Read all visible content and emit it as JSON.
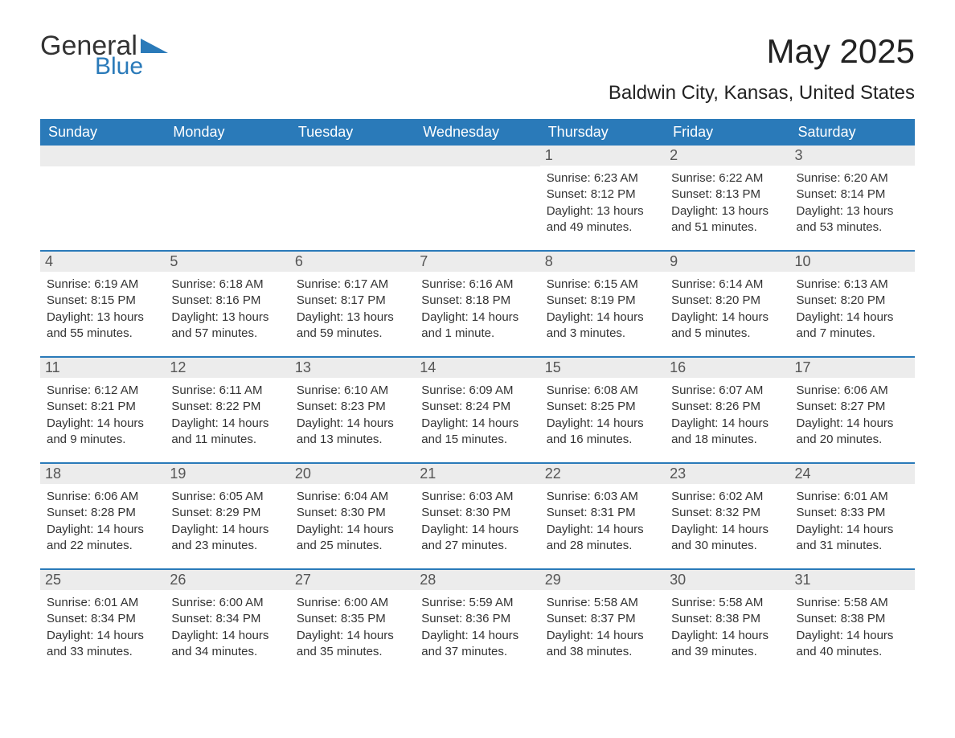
{
  "logo": {
    "text1": "General",
    "text2": "Blue",
    "accent": "#2a7ab9"
  },
  "title": "May 2025",
  "location": "Baldwin City, Kansas, United States",
  "colors": {
    "header_bg": "#2a7ab9",
    "header_text": "#ffffff",
    "daynum_bg": "#ececec",
    "border": "#2a7ab9",
    "body_text": "#333333"
  },
  "dayNames": [
    "Sunday",
    "Monday",
    "Tuesday",
    "Wednesday",
    "Thursday",
    "Friday",
    "Saturday"
  ],
  "startOffset": 4,
  "days": [
    {
      "n": 1,
      "sr": "6:23 AM",
      "ss": "8:12 PM",
      "dl": "13 hours and 49 minutes."
    },
    {
      "n": 2,
      "sr": "6:22 AM",
      "ss": "8:13 PM",
      "dl": "13 hours and 51 minutes."
    },
    {
      "n": 3,
      "sr": "6:20 AM",
      "ss": "8:14 PM",
      "dl": "13 hours and 53 minutes."
    },
    {
      "n": 4,
      "sr": "6:19 AM",
      "ss": "8:15 PM",
      "dl": "13 hours and 55 minutes."
    },
    {
      "n": 5,
      "sr": "6:18 AM",
      "ss": "8:16 PM",
      "dl": "13 hours and 57 minutes."
    },
    {
      "n": 6,
      "sr": "6:17 AM",
      "ss": "8:17 PM",
      "dl": "13 hours and 59 minutes."
    },
    {
      "n": 7,
      "sr": "6:16 AM",
      "ss": "8:18 PM",
      "dl": "14 hours and 1 minute."
    },
    {
      "n": 8,
      "sr": "6:15 AM",
      "ss": "8:19 PM",
      "dl": "14 hours and 3 minutes."
    },
    {
      "n": 9,
      "sr": "6:14 AM",
      "ss": "8:20 PM",
      "dl": "14 hours and 5 minutes."
    },
    {
      "n": 10,
      "sr": "6:13 AM",
      "ss": "8:20 PM",
      "dl": "14 hours and 7 minutes."
    },
    {
      "n": 11,
      "sr": "6:12 AM",
      "ss": "8:21 PM",
      "dl": "14 hours and 9 minutes."
    },
    {
      "n": 12,
      "sr": "6:11 AM",
      "ss": "8:22 PM",
      "dl": "14 hours and 11 minutes."
    },
    {
      "n": 13,
      "sr": "6:10 AM",
      "ss": "8:23 PM",
      "dl": "14 hours and 13 minutes."
    },
    {
      "n": 14,
      "sr": "6:09 AM",
      "ss": "8:24 PM",
      "dl": "14 hours and 15 minutes."
    },
    {
      "n": 15,
      "sr": "6:08 AM",
      "ss": "8:25 PM",
      "dl": "14 hours and 16 minutes."
    },
    {
      "n": 16,
      "sr": "6:07 AM",
      "ss": "8:26 PM",
      "dl": "14 hours and 18 minutes."
    },
    {
      "n": 17,
      "sr": "6:06 AM",
      "ss": "8:27 PM",
      "dl": "14 hours and 20 minutes."
    },
    {
      "n": 18,
      "sr": "6:06 AM",
      "ss": "8:28 PM",
      "dl": "14 hours and 22 minutes."
    },
    {
      "n": 19,
      "sr": "6:05 AM",
      "ss": "8:29 PM",
      "dl": "14 hours and 23 minutes."
    },
    {
      "n": 20,
      "sr": "6:04 AM",
      "ss": "8:30 PM",
      "dl": "14 hours and 25 minutes."
    },
    {
      "n": 21,
      "sr": "6:03 AM",
      "ss": "8:30 PM",
      "dl": "14 hours and 27 minutes."
    },
    {
      "n": 22,
      "sr": "6:03 AM",
      "ss": "8:31 PM",
      "dl": "14 hours and 28 minutes."
    },
    {
      "n": 23,
      "sr": "6:02 AM",
      "ss": "8:32 PM",
      "dl": "14 hours and 30 minutes."
    },
    {
      "n": 24,
      "sr": "6:01 AM",
      "ss": "8:33 PM",
      "dl": "14 hours and 31 minutes."
    },
    {
      "n": 25,
      "sr": "6:01 AM",
      "ss": "8:34 PM",
      "dl": "14 hours and 33 minutes."
    },
    {
      "n": 26,
      "sr": "6:00 AM",
      "ss": "8:34 PM",
      "dl": "14 hours and 34 minutes."
    },
    {
      "n": 27,
      "sr": "6:00 AM",
      "ss": "8:35 PM",
      "dl": "14 hours and 35 minutes."
    },
    {
      "n": 28,
      "sr": "5:59 AM",
      "ss": "8:36 PM",
      "dl": "14 hours and 37 minutes."
    },
    {
      "n": 29,
      "sr": "5:58 AM",
      "ss": "8:37 PM",
      "dl": "14 hours and 38 minutes."
    },
    {
      "n": 30,
      "sr": "5:58 AM",
      "ss": "8:38 PM",
      "dl": "14 hours and 39 minutes."
    },
    {
      "n": 31,
      "sr": "5:58 AM",
      "ss": "8:38 PM",
      "dl": "14 hours and 40 minutes."
    }
  ],
  "labels": {
    "sunrise": "Sunrise:",
    "sunset": "Sunset:",
    "daylight": "Daylight:"
  }
}
